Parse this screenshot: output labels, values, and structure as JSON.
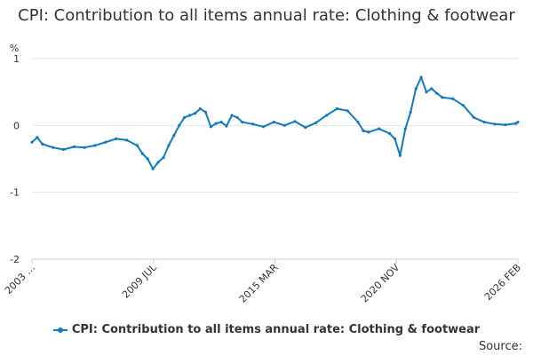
{
  "chart_data": {
    "type": "line",
    "title": "CPI: Contribution to all items annual rate: Clothing & footwear",
    "ylabel": "%",
    "ylim": [
      -2,
      1
    ],
    "yticks": [
      1,
      0,
      -1,
      -2
    ],
    "xlim": [
      2003.0,
      2026.1
    ],
    "xtick_labels": [
      "2003 …",
      "2009 JUL",
      "2015 MAR",
      "2020 NOV",
      "2026 FEB"
    ],
    "series": [
      {
        "name": "CPI: Contribution to all items annual rate: Clothing & footwear",
        "color": "#0f7bbf",
        "x": [
          2003.0,
          2003.25,
          2003.5,
          2004.0,
          2004.5,
          2005.0,
          2005.5,
          2006.0,
          2006.5,
          2007.0,
          2007.5,
          2008.0,
          2008.25,
          2008.5,
          2008.75,
          2009.0,
          2009.25,
          2009.5,
          2009.75,
          2010.0,
          2010.25,
          2010.5,
          2010.75,
          2011.0,
          2011.25,
          2011.5,
          2011.75,
          2012.0,
          2012.25,
          2012.5,
          2012.75,
          2013.0,
          2013.5,
          2014.0,
          2014.5,
          2015.0,
          2015.5,
          2016.0,
          2016.5,
          2017.0,
          2017.5,
          2018.0,
          2018.5,
          2018.75,
          2019.0,
          2019.5,
          2020.0,
          2020.25,
          2020.5,
          2020.75,
          2021.0,
          2021.25,
          2021.5,
          2021.75,
          2022.0,
          2022.25,
          2022.5,
          2023.0,
          2023.5,
          2024.0,
          2024.5,
          2025.0,
          2025.5,
          2026.0,
          2026.1
        ],
        "values": [
          -0.25,
          -0.18,
          -0.28,
          -0.33,
          -0.36,
          -0.32,
          -0.33,
          -0.3,
          -0.25,
          -0.2,
          -0.22,
          -0.3,
          -0.42,
          -0.5,
          -0.65,
          -0.55,
          -0.48,
          -0.3,
          -0.15,
          0.0,
          0.12,
          0.15,
          0.18,
          0.25,
          0.2,
          -0.02,
          0.03,
          0.05,
          -0.01,
          0.15,
          0.12,
          0.05,
          0.02,
          -0.02,
          0.05,
          0.0,
          0.06,
          -0.03,
          0.04,
          0.15,
          0.25,
          0.22,
          0.05,
          -0.08,
          -0.1,
          -0.05,
          -0.12,
          -0.2,
          -0.45,
          -0.05,
          0.2,
          0.55,
          0.72,
          0.5,
          0.55,
          0.48,
          0.42,
          0.4,
          0.3,
          0.12,
          0.05,
          0.02,
          0.01,
          0.03,
          0.05
        ]
      }
    ],
    "source_label": "Source:"
  }
}
